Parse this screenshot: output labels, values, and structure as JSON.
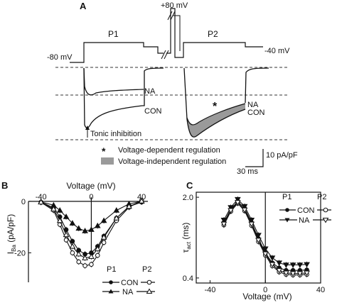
{
  "panelA": {
    "label": "A",
    "protocol": {
      "p1": "P1",
      "p2": "P2",
      "v_hold_left": "-80 mV",
      "v_prepulse": "+80 mV",
      "v_hold_right": "-40 mV"
    },
    "trace_labels": {
      "na_p1": "NA",
      "con_p1": "CON",
      "na_p2": "NA",
      "con_p2": "CON",
      "tonic": "Tonic inhibition"
    },
    "legend": {
      "star_symbol": "*",
      "star_label": "Voltage-dependent regulation",
      "box_label": "Voltage-independent regulation"
    },
    "scalebar": {
      "current": "10 pA/pF",
      "time": "30 ms"
    }
  },
  "chart_data": [
    {
      "panel": "B",
      "type": "line",
      "title": "",
      "xlabel": "Voltage (mV)",
      "ylabel": "I_Ba (pA/pF)",
      "ylabel_main": "I",
      "ylabel_sub": "Ba",
      "ylabel_rest": " (pA/pF)",
      "xlim": [
        -50,
        45
      ],
      "ylim": [
        -32,
        3
      ],
      "xticks": [
        "-40",
        "0",
        "40"
      ],
      "xtick_values": [
        -40,
        0,
        40
      ],
      "yticks": [
        "0",
        "-20"
      ],
      "ytick_values": [
        0,
        -20
      ],
      "legend": {
        "p1_header": "P1",
        "p2_header": "P2",
        "con": "CON",
        "na": "NA"
      },
      "x": [
        -40,
        -30,
        -25,
        -20,
        -15,
        -10,
        -5,
        0,
        5,
        10,
        20,
        30,
        40
      ],
      "series": [
        {
          "name": "CON",
          "phase": "P1",
          "marker": "filled-circle",
          "values": [
            -0.3,
            -2.5,
            -6,
            -11,
            -15.5,
            -19,
            -20.5,
            -20,
            -17.5,
            -13.5,
            -6.5,
            -2,
            -0.3
          ]
        },
        {
          "name": "CON",
          "phase": "P2",
          "marker": "open-circle",
          "values": [
            -0.4,
            -3.5,
            -9,
            -15,
            -20,
            -23.5,
            -25,
            -24.5,
            -21,
            -16,
            -7.5,
            -2.3,
            0.3
          ]
        },
        {
          "name": "NA",
          "phase": "P1",
          "marker": "filled-triangle-up",
          "values": [
            -0.2,
            -1.5,
            -3.5,
            -6,
            -8.5,
            -10.5,
            -11.5,
            -11,
            -9.5,
            -7.5,
            -3.5,
            -1,
            0
          ]
        },
        {
          "name": "NA",
          "phase": "P2",
          "marker": "open-triangle-up",
          "values": [
            -0.3,
            -3,
            -7.5,
            -13,
            -17.5,
            -20.5,
            -22,
            -21.5,
            -18.5,
            -14,
            -6.5,
            -2,
            0.1
          ]
        }
      ]
    },
    {
      "panel": "C",
      "type": "line",
      "title": "",
      "xlabel": "Voltage (mV)",
      "ylabel": "τ_act (ms)",
      "ylabel_main": "τ",
      "ylabel_sub": "act",
      "ylabel_rest": " (ms)",
      "xlim": [
        -50,
        40
      ],
      "ylim": [
        0.3,
        2.1
      ],
      "xticks": [
        "-40",
        "0",
        "40"
      ],
      "xtick_values": [
        -40,
        0,
        40
      ],
      "yticks": [
        "2.0",
        "0.4"
      ],
      "ytick_values": [
        2.0,
        0.4
      ],
      "legend": {
        "p1_header": "P1",
        "p2_header": "P2",
        "con": "CON",
        "na": "NA"
      },
      "x": [
        -30,
        -25,
        -20,
        -15,
        -10,
        -5,
        0,
        5,
        10,
        15,
        20,
        25,
        30
      ],
      "series": [
        {
          "name": "CON",
          "phase": "P1",
          "marker": "filled-circle",
          "values": [
            1.5,
            1.76,
            1.92,
            1.78,
            1.5,
            1.18,
            0.9,
            0.7,
            0.6,
            0.55,
            0.55,
            0.55,
            0.56
          ]
        },
        {
          "name": "CON",
          "phase": "P2",
          "marker": "open-circle",
          "values": [
            1.45,
            1.72,
            1.88,
            1.73,
            1.44,
            1.12,
            0.85,
            0.64,
            0.52,
            0.47,
            0.46,
            0.46,
            0.47
          ]
        },
        {
          "name": "NA",
          "phase": "P1",
          "marker": "filled-triangle-down",
          "values": [
            1.55,
            1.8,
            1.96,
            1.82,
            1.55,
            1.25,
            0.98,
            0.8,
            0.7,
            0.66,
            0.66,
            0.66,
            0.67
          ]
        },
        {
          "name": "NA",
          "phase": "P2",
          "marker": "open-triangle-down",
          "values": [
            1.47,
            1.74,
            1.9,
            1.75,
            1.47,
            1.15,
            0.88,
            0.67,
            0.55,
            0.5,
            0.49,
            0.49,
            0.5
          ]
        }
      ]
    }
  ]
}
